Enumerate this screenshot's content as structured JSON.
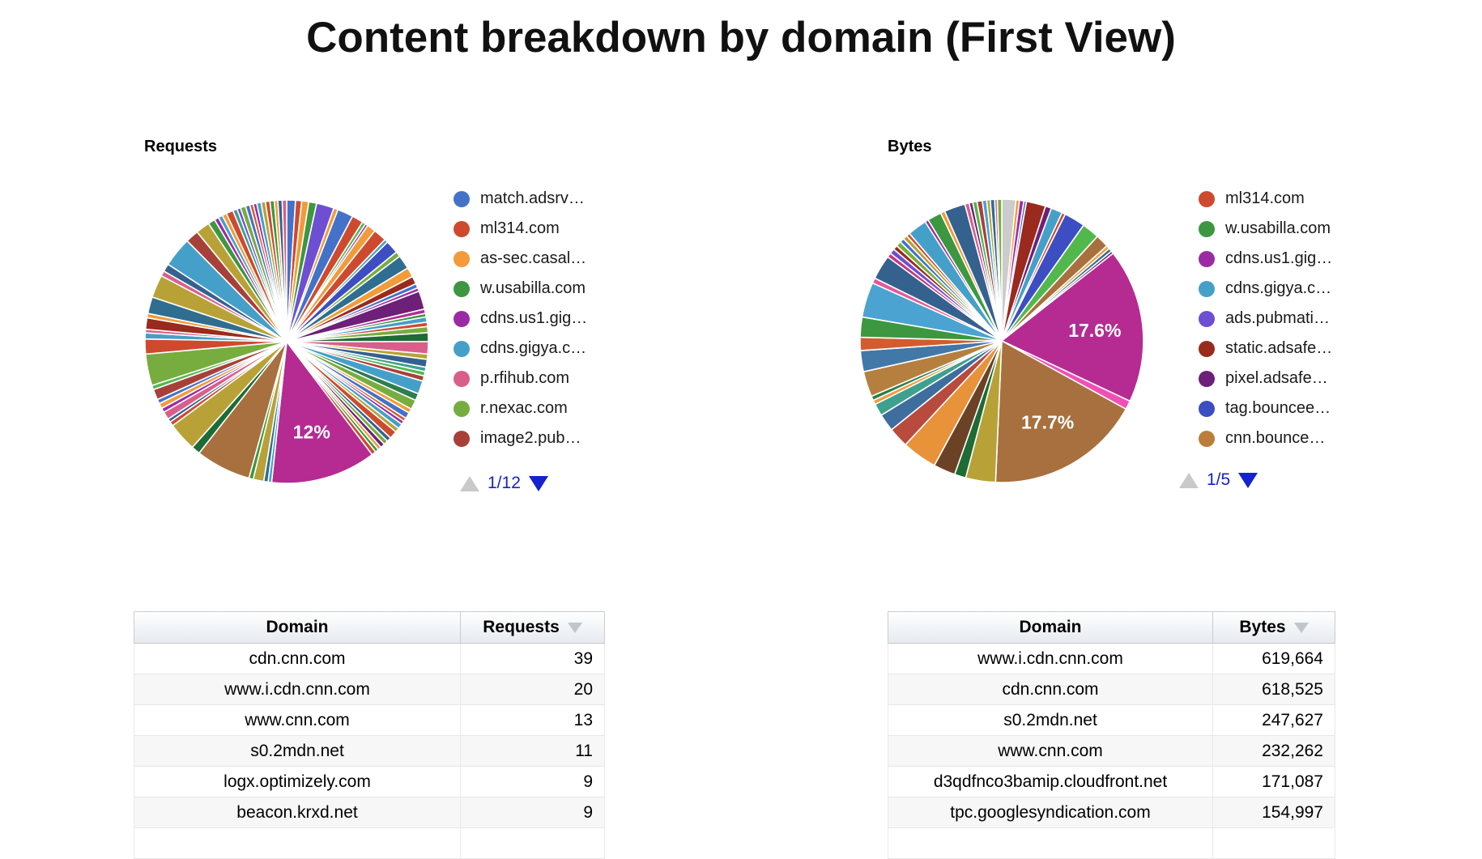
{
  "page_title": "Content breakdown by domain (First View)",
  "charts": {
    "requests": {
      "section_label": "Requests",
      "legend": [
        {
          "label": "match.adsrv…",
          "color": "#4472C9"
        },
        {
          "label": "ml314.com",
          "color": "#CE4A2F"
        },
        {
          "label": "as-sec.casal…",
          "color": "#F29B38"
        },
        {
          "label": "w.usabilla.com",
          "color": "#3D9740"
        },
        {
          "label": "cdns.us1.gig…",
          "color": "#9B2BA4"
        },
        {
          "label": "cdns.gigya.c…",
          "color": "#45A0C9"
        },
        {
          "label": "p.rfihub.com",
          "color": "#D95F8A"
        },
        {
          "label": "r.nexac.com",
          "color": "#77AD3F"
        },
        {
          "label": "image2.pub…",
          "color": "#A8403A"
        }
      ],
      "pager": {
        "text": "1/12",
        "prev_enabled": false,
        "next_enabled": true
      },
      "chart_data": {
        "type": "pie",
        "title": "Requests",
        "value_format": "percent_of_total",
        "labeled_slices": [
          {
            "value_pct": 12.0,
            "label": "12%",
            "color": "#B52B92"
          }
        ],
        "slices": [
          [
            1.0,
            "#4472C9"
          ],
          [
            0.7,
            "#CE4A2F"
          ],
          [
            0.8,
            "#F29B38"
          ],
          [
            0.9,
            "#3D9740"
          ],
          [
            2.0,
            "#6E4FD2"
          ],
          [
            0.5,
            "#F29B38"
          ],
          [
            1.8,
            "#4472C9"
          ],
          [
            1.3,
            "#CE4A2F"
          ],
          [
            0.4,
            "#52B84C"
          ],
          [
            0.3,
            "#9B2BA4"
          ],
          [
            1.0,
            "#F29B38"
          ],
          [
            1.5,
            "#CE4A2F"
          ],
          [
            0.4,
            "#45A0C9"
          ],
          [
            1.5,
            "#3C4EC1"
          ],
          [
            0.6,
            "#77AD3F"
          ],
          [
            1.6,
            "#2F6E91"
          ],
          [
            1.1,
            "#F29B38"
          ],
          [
            0.9,
            "#9A2A1D"
          ],
          [
            0.5,
            "#4472C9"
          ],
          [
            0.4,
            "#9B2BA4"
          ],
          [
            2.1,
            "#6D2077"
          ],
          [
            0.5,
            "#B52B92"
          ],
          [
            0.4,
            "#3D9740"
          ],
          [
            0.6,
            "#45A0C9"
          ],
          [
            0.5,
            "#CE4A2F"
          ],
          [
            0.7,
            "#77AD3F"
          ],
          [
            1.0,
            "#1E6B35"
          ],
          [
            1.4,
            "#D95F8A"
          ],
          [
            0.6,
            "#B8A237"
          ],
          [
            0.9,
            "#35618F"
          ],
          [
            0.5,
            "#3FA08F"
          ],
          [
            0.5,
            "#52B84C"
          ],
          [
            0.6,
            "#A8403A"
          ],
          [
            1.5,
            "#45A0C9"
          ],
          [
            0.8,
            "#2E7D4F"
          ],
          [
            1.1,
            "#77AD3F"
          ],
          [
            0.5,
            "#F29B38"
          ],
          [
            0.7,
            "#4472C9"
          ],
          [
            0.4,
            "#D35B2E"
          ],
          [
            0.4,
            "#9B2BA4"
          ],
          [
            0.6,
            "#45A0C9"
          ],
          [
            0.5,
            "#B8A237"
          ],
          [
            0.9,
            "#CE4A2F"
          ],
          [
            0.5,
            "#35618F"
          ],
          [
            0.5,
            "#77AD3F"
          ],
          [
            0.5,
            "#6D2077"
          ],
          [
            0.4,
            "#F29B38"
          ],
          [
            0.4,
            "#3D9740"
          ],
          [
            0.5,
            "#CE4A2F"
          ],
          [
            12.0,
            "#B52B92",
            "12%"
          ],
          [
            0.4,
            "#45A0C9"
          ],
          [
            0.5,
            "#2F6E91"
          ],
          [
            1.2,
            "#B8A237"
          ],
          [
            0.5,
            "#3D9740"
          ],
          [
            6.3,
            "#A8703E"
          ],
          [
            1.0,
            "#1E6B35"
          ],
          [
            3.3,
            "#B8A237"
          ],
          [
            0.5,
            "#CE4A2F"
          ],
          [
            0.4,
            "#35618F"
          ],
          [
            0.9,
            "#D95F8A"
          ],
          [
            0.5,
            "#9B2BA4"
          ],
          [
            0.6,
            "#F29B38"
          ],
          [
            0.5,
            "#4472C9"
          ],
          [
            1.2,
            "#A8403A"
          ],
          [
            0.5,
            "#52B84C"
          ],
          [
            3.6,
            "#77AD3F"
          ],
          [
            1.7,
            "#CE4A2F"
          ],
          [
            0.7,
            "#45A0C9"
          ],
          [
            0.4,
            "#D95F8A"
          ],
          [
            1.3,
            "#9A2A1D"
          ],
          [
            0.5,
            "#F29B38"
          ],
          [
            1.9,
            "#2F6E91"
          ],
          [
            2.6,
            "#B8A237"
          ],
          [
            0.6,
            "#D95F8A"
          ],
          [
            0.9,
            "#35618F"
          ],
          [
            3.4,
            "#45A0C9"
          ],
          [
            1.5,
            "#A8403A"
          ],
          [
            1.6,
            "#B8A237"
          ],
          [
            0.8,
            "#3D9740"
          ],
          [
            0.5,
            "#9B2BA4"
          ],
          [
            0.5,
            "#45A0C9"
          ],
          [
            0.5,
            "#F29B38"
          ],
          [
            0.8,
            "#CE4A2F"
          ],
          [
            0.5,
            "#3FA08F"
          ],
          [
            0.4,
            "#6E4FD2"
          ],
          [
            0.6,
            "#77AD3F"
          ],
          [
            0.5,
            "#4472C9"
          ],
          [
            0.4,
            "#D35B2E"
          ],
          [
            0.4,
            "#9B2BA4"
          ],
          [
            0.5,
            "#45A0C9"
          ],
          [
            0.5,
            "#B8A237"
          ],
          [
            0.5,
            "#CE4A2F"
          ],
          [
            0.5,
            "#3D9740"
          ],
          [
            0.4,
            "#F29B38"
          ],
          [
            0.5,
            "#35618F"
          ],
          [
            0.5,
            "#D95F8A"
          ]
        ]
      }
    },
    "bytes": {
      "section_label": "Bytes",
      "legend": [
        {
          "label": "ml314.com",
          "color": "#CE4A2F"
        },
        {
          "label": "w.usabilla.com",
          "color": "#3D9740"
        },
        {
          "label": "cdns.us1.gig…",
          "color": "#9B2BA4"
        },
        {
          "label": "cdns.gigya.c…",
          "color": "#45A0C9"
        },
        {
          "label": "ads.pubmati…",
          "color": "#6E4FD2"
        },
        {
          "label": "static.adsafe…",
          "color": "#9A2A1D"
        },
        {
          "label": "pixel.adsafe…",
          "color": "#6D2077"
        },
        {
          "label": "tag.bouncee…",
          "color": "#3C4EC1"
        },
        {
          "label": "cnn.bounce…",
          "color": "#BA7E3A"
        }
      ],
      "pager": {
        "text": "1/5",
        "prev_enabled": false,
        "next_enabled": true
      },
      "chart_data": {
        "type": "pie",
        "title": "Bytes",
        "value_format": "percent_of_total",
        "labeled_slices": [
          {
            "value_pct": 17.6,
            "label": "17.6%",
            "color": "#B52B92"
          },
          {
            "value_pct": 17.7,
            "label": "17.7%",
            "color": "#A8703E"
          }
        ],
        "slices": [
          [
            1.6,
            "#CCCCCC"
          ],
          [
            0.4,
            "#F29B38"
          ],
          [
            0.5,
            "#9B2BA4"
          ],
          [
            0.3,
            "#4472C9"
          ],
          [
            2.2,
            "#9A2A1D"
          ],
          [
            0.7,
            "#6D2077"
          ],
          [
            1.3,
            "#45A0C9"
          ],
          [
            0.4,
            "#CE4A2F"
          ],
          [
            2.4,
            "#3C4EC1"
          ],
          [
            2.0,
            "#52B84C"
          ],
          [
            1.5,
            "#A8703E"
          ],
          [
            0.4,
            "#F29B38"
          ],
          [
            0.4,
            "#2F6E91"
          ],
          [
            0.3,
            "#6D2077"
          ],
          [
            17.6,
            "#B52B92",
            "17.6%"
          ],
          [
            1.0,
            "#F24FB5"
          ],
          [
            17.7,
            "#A8703E",
            "17.7%"
          ],
          [
            3.4,
            "#B8A237"
          ],
          [
            1.3,
            "#1E6B35"
          ],
          [
            2.5,
            "#6B4226"
          ],
          [
            4.0,
            "#E8923A"
          ],
          [
            2.3,
            "#B94A3E"
          ],
          [
            2.0,
            "#3E6E9E"
          ],
          [
            1.4,
            "#3FA08F"
          ],
          [
            0.5,
            "#F29B38"
          ],
          [
            0.5,
            "#2E7D4F"
          ],
          [
            2.9,
            "#B5803F"
          ],
          [
            2.4,
            "#4178A8"
          ],
          [
            1.5,
            "#D35B2E"
          ],
          [
            2.3,
            "#3D9740"
          ],
          [
            4.0,
            "#4BA3D1"
          ],
          [
            0.6,
            "#E2599A"
          ],
          [
            2.8,
            "#35618F"
          ],
          [
            0.5,
            "#C13584"
          ],
          [
            0.6,
            "#6E4FD2"
          ],
          [
            0.5,
            "#9A2A1D"
          ],
          [
            0.6,
            "#77AD3F"
          ],
          [
            0.5,
            "#4472C9"
          ],
          [
            0.5,
            "#B8A237"
          ],
          [
            0.4,
            "#CE4A2F"
          ],
          [
            2.2,
            "#45A0C9"
          ],
          [
            0.4,
            "#9B2BA4"
          ],
          [
            1.6,
            "#3D9740"
          ],
          [
            0.5,
            "#F29B38"
          ],
          [
            2.4,
            "#35618F"
          ],
          [
            0.5,
            "#D95F8A"
          ],
          [
            0.4,
            "#6D2077"
          ],
          [
            0.5,
            "#52B84C"
          ],
          [
            0.6,
            "#A8403A"
          ],
          [
            0.5,
            "#4BA3D1"
          ],
          [
            0.4,
            "#B8A237"
          ],
          [
            0.5,
            "#2F6E91"
          ],
          [
            0.3,
            "#E2599A"
          ],
          [
            0.5,
            "#77AD3F"
          ]
        ]
      }
    }
  },
  "tables": {
    "requests": {
      "headers": [
        "Domain",
        "Requests"
      ],
      "sorted_by": "Requests",
      "sort_direction": "descending",
      "rows": [
        [
          "cdn.cnn.com",
          "39"
        ],
        [
          "www.i.cdn.cnn.com",
          "20"
        ],
        [
          "www.cnn.com",
          "13"
        ],
        [
          "s0.2mdn.net",
          "11"
        ],
        [
          "logx.optimizely.com",
          "9"
        ],
        [
          "beacon.krxd.net",
          "9"
        ]
      ]
    },
    "bytes": {
      "headers": [
        "Domain",
        "Bytes"
      ],
      "sorted_by": "Bytes",
      "sort_direction": "descending",
      "rows": [
        [
          "www.i.cdn.cnn.com",
          "619,664"
        ],
        [
          "cdn.cnn.com",
          "618,525"
        ],
        [
          "s0.2mdn.net",
          "247,627"
        ],
        [
          "www.cnn.com",
          "232,262"
        ],
        [
          "d3qdfnco3bamip.cloudfront.net",
          "171,087"
        ],
        [
          "tpc.googlesyndication.com",
          "154,997"
        ]
      ]
    }
  }
}
